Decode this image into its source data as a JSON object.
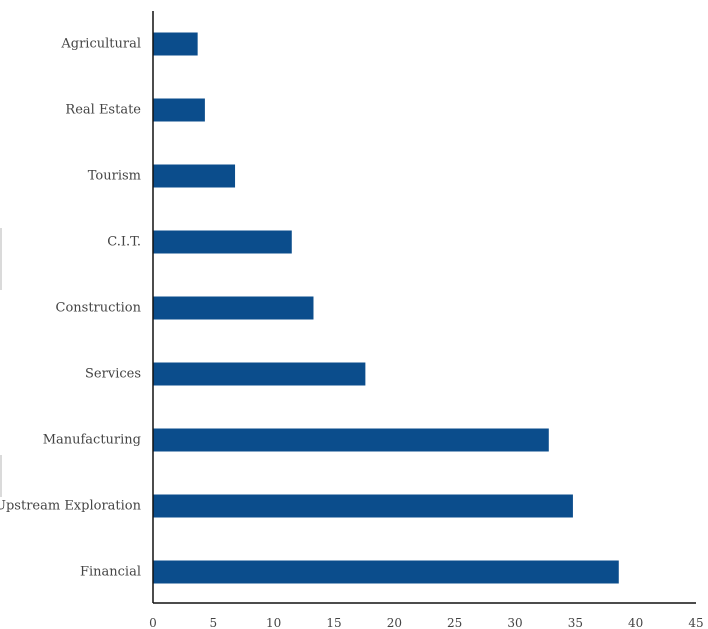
{
  "chart_data": {
    "type": "bar",
    "orientation": "horizontal",
    "title": "",
    "xlabel": "",
    "ylabel": "",
    "categories": [
      "Agricultural",
      "Real Estate",
      "Tourism",
      "C.I.T.",
      "Construction",
      "Services",
      "Manufacturing",
      "Upstream Exploration",
      "Financial"
    ],
    "values": [
      3.7,
      4.3,
      6.8,
      11.5,
      13.3,
      17.6,
      32.8,
      34.8,
      38.6
    ],
    "xlim": [
      0,
      45
    ],
    "xticks": [
      0,
      5,
      10,
      15,
      20,
      25,
      30,
      35,
      40,
      45
    ],
    "grid": false,
    "legend": "none",
    "colors": {
      "bar": "#0b4d8c",
      "axis": "#111111",
      "text": "#444444"
    }
  }
}
